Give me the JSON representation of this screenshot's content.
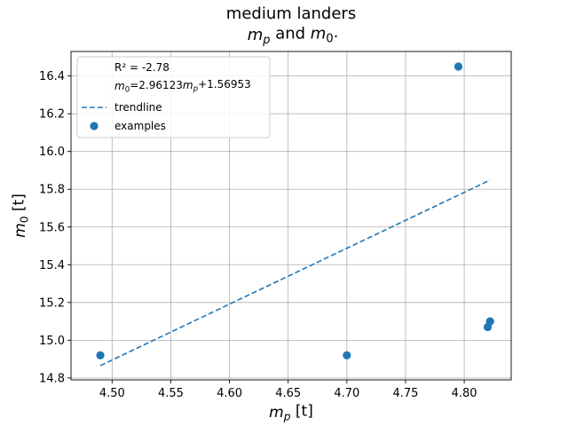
{
  "chart_data": {
    "type": "scatter",
    "title_line1": "medium landers",
    "title_line2_parts": [
      {
        "t": "m",
        "italic": true
      },
      {
        "t": "p",
        "italic": true,
        "sub": true
      },
      {
        "t": " and ",
        "italic": false
      },
      {
        "t": "m",
        "italic": true
      },
      {
        "t": "0",
        "italic": false,
        "sub": true
      },
      {
        "t": ".",
        "italic": false
      }
    ],
    "xlabel_parts": [
      {
        "t": "m",
        "italic": true
      },
      {
        "t": "p",
        "italic": true,
        "sub": true
      },
      {
        "t": " [t]",
        "italic": false
      }
    ],
    "ylabel_parts": [
      {
        "t": "m",
        "italic": true
      },
      {
        "t": "0",
        "italic": false,
        "sub": true
      },
      {
        "t": " [t]",
        "italic": false
      }
    ],
    "xlim": [
      4.465,
      4.84
    ],
    "ylim": [
      14.79,
      16.53
    ],
    "xticks": [
      "4.50",
      "4.55",
      "4.60",
      "4.65",
      "4.70",
      "4.75",
      "4.80"
    ],
    "xtick_values": [
      4.5,
      4.55,
      4.6,
      4.65,
      4.7,
      4.75,
      4.8
    ],
    "yticks": [
      "14.8",
      "15.0",
      "15.2",
      "15.4",
      "15.6",
      "15.8",
      "16.0",
      "16.2",
      "16.4"
    ],
    "ytick_values": [
      14.8,
      15.0,
      15.2,
      15.4,
      15.6,
      15.8,
      16.0,
      16.2,
      16.4
    ],
    "grid": true,
    "legend_position": "upper-left",
    "legend": {
      "r2_text": "R² = -2.78",
      "equation_parts": [
        {
          "t": "m",
          "italic": true
        },
        {
          "t": "0",
          "italic": false,
          "sub": true
        },
        {
          "t": "=2.96123",
          "italic": false
        },
        {
          "t": "m",
          "italic": true
        },
        {
          "t": "p",
          "italic": true,
          "sub": true
        },
        {
          "t": "+1.56953",
          "italic": false
        }
      ],
      "trendline_label": "trendline",
      "examples_label": "examples"
    },
    "points": [
      {
        "x": 4.49,
        "y": 14.92
      },
      {
        "x": 4.7,
        "y": 14.92
      },
      {
        "x": 4.795,
        "y": 16.45
      },
      {
        "x": 4.82,
        "y": 15.07
      },
      {
        "x": 4.822,
        "y": 15.1
      }
    ],
    "trendline": {
      "slope": 2.96123,
      "intercept": 1.56953,
      "x_start": 4.49,
      "x_end": 4.822
    },
    "color": "#1f77b4"
  }
}
